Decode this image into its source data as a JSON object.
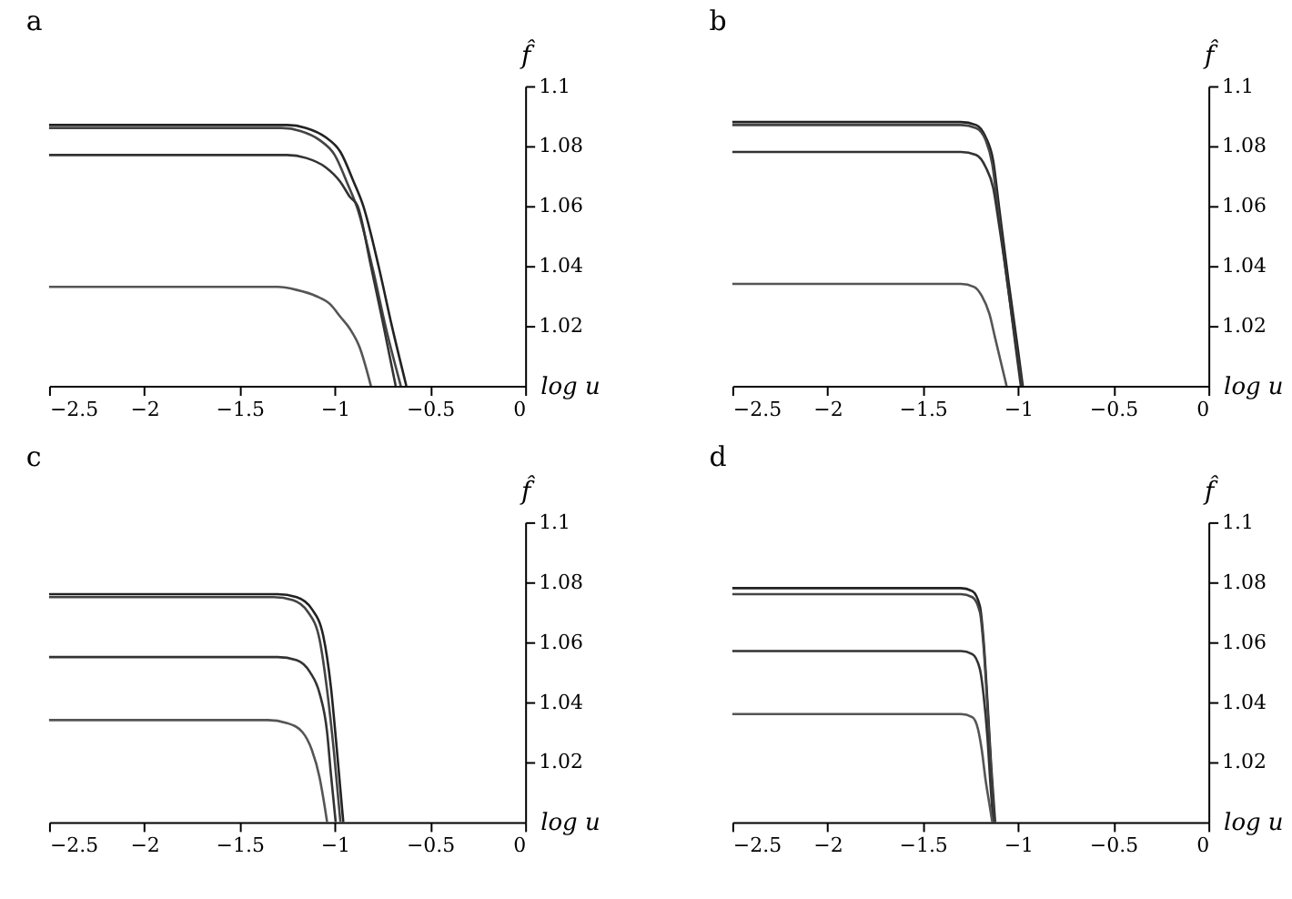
{
  "chart_data": [
    {
      "type": "line",
      "title": "a",
      "xlabel": "log u",
      "ylabel": "f̂",
      "xlim": [
        -2.5,
        0
      ],
      "ylim": [
        1.0,
        1.1
      ],
      "xticks": [
        {
          "value": -2.5,
          "label": "−2.5"
        },
        {
          "value": -2,
          "label": "−2"
        },
        {
          "value": -1.5,
          "label": "−1.5"
        },
        {
          "value": -1,
          "label": "−1"
        },
        {
          "value": -0.5,
          "label": "−0.5"
        },
        0
      ],
      "yticks": [
        1.02,
        1.04,
        1.06,
        1.08,
        1.1
      ],
      "grid": false,
      "legend": false,
      "marker": "none",
      "line_style": "solid",
      "series": [
        {
          "color": "#222222",
          "x": [
            -2.5,
            -1.25,
            -1.15,
            -1.05,
            -0.97,
            -0.9,
            -0.85,
            -0.77,
            -0.7,
            -0.624
          ],
          "values": [
            1.087,
            1.087,
            1.086,
            1.083,
            1.078,
            1.068,
            1.06,
            1.04,
            1.02,
            1.0
          ]
        },
        {
          "color": "#444444",
          "x": [
            -2.5,
            -1.28,
            -1.18,
            -1.08,
            -1.0,
            -0.93,
            -0.88,
            -0.8,
            -0.73,
            -0.653
          ],
          "values": [
            1.086,
            1.086,
            1.085,
            1.082,
            1.077,
            1.067,
            1.059,
            1.039,
            1.019,
            1.0
          ]
        },
        {
          "color": "#333333",
          "x": [
            -2.5,
            -1.25,
            -1.15,
            -1.05,
            -0.97,
            -0.92,
            -0.88,
            -0.81,
            -0.75,
            -0.68
          ],
          "values": [
            1.077,
            1.077,
            1.076,
            1.073,
            1.068,
            1.063,
            1.06,
            1.04,
            1.022,
            1.0
          ]
        },
        {
          "color": "#555555",
          "x": [
            -2.5,
            -1.3,
            -1.2,
            -1.1,
            -1.02,
            -0.97,
            -0.92,
            -0.87,
            -0.81
          ],
          "values": [
            1.033,
            1.033,
            1.032,
            1.03,
            1.027,
            1.023,
            1.019,
            1.013,
            1.0
          ]
        }
      ]
    },
    {
      "type": "line",
      "title": "b",
      "xlabel": "log u",
      "ylabel": "f̂",
      "xlim": [
        -2.5,
        0
      ],
      "ylim": [
        1.0,
        1.1
      ],
      "xticks": [
        {
          "value": -2.5,
          "label": "−2.5"
        },
        {
          "value": -2,
          "label": "−2"
        },
        {
          "value": -1.5,
          "label": "−1.5"
        },
        {
          "value": -1,
          "label": "−1"
        },
        {
          "value": -0.5,
          "label": "−0.5"
        },
        0
      ],
      "yticks": [
        1.02,
        1.04,
        1.06,
        1.08,
        1.1
      ],
      "grid": false,
      "legend": false,
      "marker": "none",
      "line_style": "solid",
      "series": [
        {
          "color": "#222222",
          "x": [
            -2.5,
            -1.3,
            -1.22,
            -1.17,
            -1.13,
            -1.1,
            -1.05,
            -1.0,
            -0.975
          ],
          "values": [
            1.088,
            1.088,
            1.087,
            1.083,
            1.075,
            1.06,
            1.035,
            1.012,
            1.0
          ]
        },
        {
          "color": "#444444",
          "x": [
            -2.5,
            -1.3,
            -1.22,
            -1.17,
            -1.135,
            -1.105,
            -1.055,
            -1.005,
            -0.98
          ],
          "values": [
            1.087,
            1.087,
            1.086,
            1.082,
            1.074,
            1.059,
            1.034,
            1.011,
            1.0
          ]
        },
        {
          "color": "#333333",
          "x": [
            -2.5,
            -1.3,
            -1.22,
            -1.17,
            -1.13,
            -1.1,
            -1.05,
            -1.01,
            -0.985
          ],
          "values": [
            1.078,
            1.078,
            1.077,
            1.073,
            1.066,
            1.054,
            1.032,
            1.012,
            1.0
          ]
        },
        {
          "color": "#555555",
          "x": [
            -2.5,
            -1.3,
            -1.23,
            -1.19,
            -1.15,
            -1.12,
            -1.09,
            -1.06
          ],
          "values": [
            1.034,
            1.034,
            1.033,
            1.03,
            1.024,
            1.016,
            1.008,
            1.0
          ]
        }
      ]
    },
    {
      "type": "line",
      "title": "c",
      "xlabel": "log u",
      "ylabel": "f̂",
      "xlim": [
        -2.5,
        0
      ],
      "ylim": [
        1.0,
        1.1
      ],
      "xticks": [
        {
          "value": -2.5,
          "label": "−2.5"
        },
        {
          "value": -2,
          "label": "−2"
        },
        {
          "value": -1.5,
          "label": "−1.5"
        },
        {
          "value": -1,
          "label": "−1"
        },
        {
          "value": -0.5,
          "label": "−0.5"
        },
        0
      ],
      "yticks": [
        1.02,
        1.04,
        1.06,
        1.08,
        1.1
      ],
      "grid": false,
      "legend": false,
      "marker": "none",
      "line_style": "solid",
      "series": [
        {
          "color": "#222222",
          "x": [
            -2.5,
            -1.3,
            -1.2,
            -1.12,
            -1.06,
            -1.02,
            -0.99,
            -0.955
          ],
          "values": [
            1.076,
            1.076,
            1.075,
            1.071,
            1.062,
            1.045,
            1.025,
            1.0
          ]
        },
        {
          "color": "#444444",
          "x": [
            -2.5,
            -1.32,
            -1.22,
            -1.14,
            -1.08,
            -1.04,
            -1.005,
            -0.97
          ],
          "values": [
            1.075,
            1.075,
            1.074,
            1.07,
            1.061,
            1.044,
            1.024,
            1.0
          ]
        },
        {
          "color": "#333333",
          "x": [
            -2.5,
            -1.3,
            -1.2,
            -1.13,
            -1.08,
            -1.04,
            -1.02,
            -0.995
          ],
          "values": [
            1.055,
            1.055,
            1.054,
            1.05,
            1.043,
            1.03,
            1.016,
            1.0
          ]
        },
        {
          "color": "#555555",
          "x": [
            -2.5,
            -1.35,
            -1.25,
            -1.17,
            -1.12,
            -1.08,
            -1.06,
            -1.04
          ],
          "values": [
            1.034,
            1.034,
            1.033,
            1.03,
            1.024,
            1.015,
            1.008,
            1.0
          ]
        }
      ]
    },
    {
      "type": "line",
      "title": "d",
      "xlabel": "log u",
      "ylabel": "f̂",
      "xlim": [
        -2.5,
        0
      ],
      "ylim": [
        1.0,
        1.1
      ],
      "xticks": [
        {
          "value": -2.5,
          "label": "−2.5"
        },
        {
          "value": -2,
          "label": "−2"
        },
        {
          "value": -1.5,
          "label": "−1.5"
        },
        {
          "value": -1,
          "label": "−1"
        },
        {
          "value": -0.5,
          "label": "−0.5"
        },
        0
      ],
      "yticks": [
        1.02,
        1.04,
        1.06,
        1.08,
        1.1
      ],
      "grid": false,
      "legend": false,
      "marker": "none",
      "line_style": "solid",
      "series": [
        {
          "color": "#222222",
          "x": [
            -2.5,
            -1.3,
            -1.24,
            -1.2,
            -1.18,
            -1.16,
            -1.14,
            -1.12
          ],
          "values": [
            1.078,
            1.078,
            1.077,
            1.072,
            1.06,
            1.04,
            1.018,
            1.0
          ]
        },
        {
          "color": "#444444",
          "x": [
            -2.5,
            -1.3,
            -1.24,
            -1.2,
            -1.18,
            -1.16,
            -1.14,
            -1.125
          ],
          "values": [
            1.076,
            1.076,
            1.075,
            1.07,
            1.058,
            1.038,
            1.016,
            1.0
          ]
        },
        {
          "color": "#333333",
          "x": [
            -2.5,
            -1.3,
            -1.24,
            -1.2,
            -1.18,
            -1.16,
            -1.145,
            -1.13
          ],
          "values": [
            1.057,
            1.057,
            1.056,
            1.051,
            1.042,
            1.028,
            1.013,
            1.0
          ]
        },
        {
          "color": "#555555",
          "x": [
            -2.5,
            -1.3,
            -1.24,
            -1.21,
            -1.19,
            -1.17,
            -1.15,
            -1.135
          ],
          "values": [
            1.036,
            1.036,
            1.035,
            1.031,
            1.024,
            1.014,
            1.006,
            1.0
          ]
        }
      ]
    }
  ]
}
